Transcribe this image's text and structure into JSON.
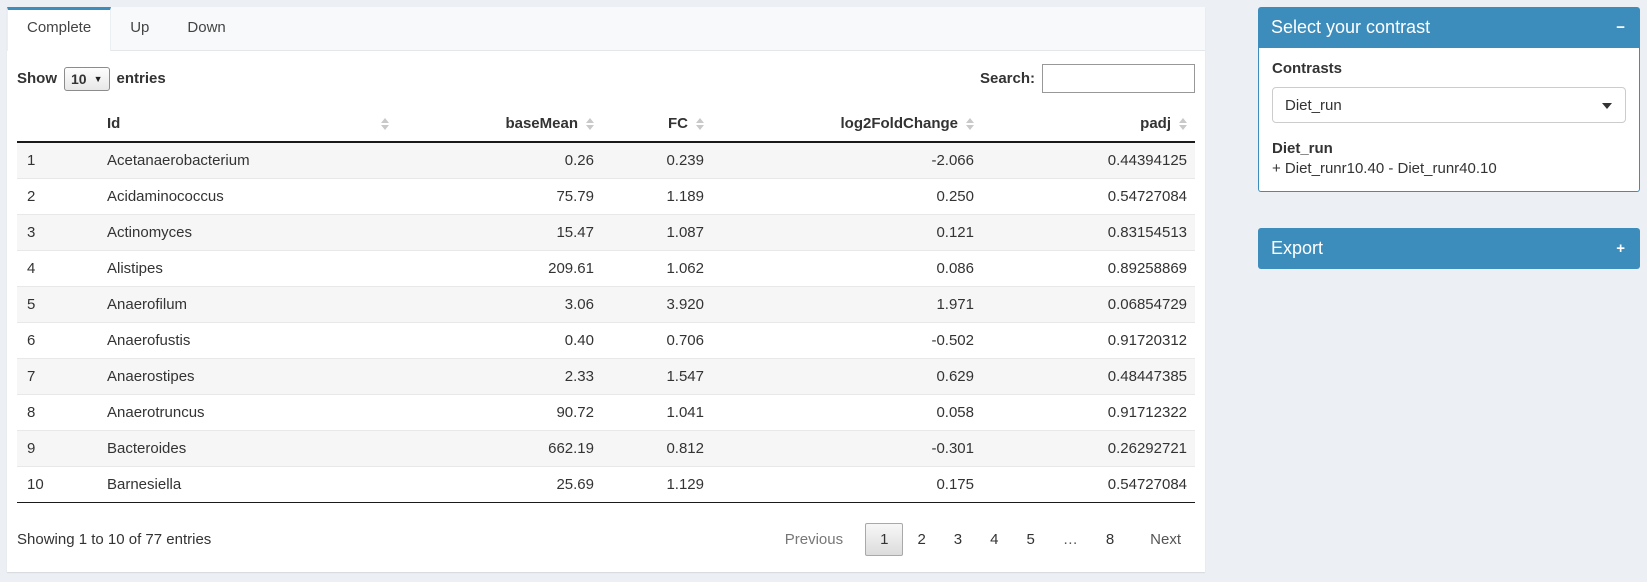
{
  "tabs": [
    {
      "label": "Complete",
      "active": true
    },
    {
      "label": "Up",
      "active": false
    },
    {
      "label": "Down",
      "active": false
    }
  ],
  "table_controls": {
    "show_label": "Show",
    "page_size": "10",
    "entries_label": "entries",
    "search_label": "Search:",
    "search_value": ""
  },
  "table": {
    "columns": [
      {
        "label": "",
        "sortable": false,
        "align": "left"
      },
      {
        "label": "Id",
        "sortable": true,
        "align": "left"
      },
      {
        "label": "baseMean",
        "sortable": true,
        "align": "right"
      },
      {
        "label": "FC",
        "sortable": true,
        "align": "right"
      },
      {
        "label": "log2FoldChange",
        "sortable": true,
        "align": "right"
      },
      {
        "label": "padj",
        "sortable": true,
        "align": "right"
      }
    ],
    "rows": [
      [
        "1",
        "Acetanaerobacterium",
        "0.26",
        "0.239",
        "-2.066",
        "0.44394125"
      ],
      [
        "2",
        "Acidaminococcus",
        "75.79",
        "1.189",
        "0.250",
        "0.54727084"
      ],
      [
        "3",
        "Actinomyces",
        "15.47",
        "1.087",
        "0.121",
        "0.83154513"
      ],
      [
        "4",
        "Alistipes",
        "209.61",
        "1.062",
        "0.086",
        "0.89258869"
      ],
      [
        "5",
        "Anaerofilum",
        "3.06",
        "3.920",
        "1.971",
        "0.06854729"
      ],
      [
        "6",
        "Anaerofustis",
        "0.40",
        "0.706",
        "-0.502",
        "0.91720312"
      ],
      [
        "7",
        "Anaerostipes",
        "2.33",
        "1.547",
        "0.629",
        "0.48447385"
      ],
      [
        "8",
        "Anaerotruncus",
        "90.72",
        "1.041",
        "0.058",
        "0.91712322"
      ],
      [
        "9",
        "Bacteroides",
        "662.19",
        "0.812",
        "-0.301",
        "0.26292721"
      ],
      [
        "10",
        "Barnesiella",
        "25.69",
        "1.129",
        "0.175",
        "0.54727084"
      ]
    ],
    "info": "Showing 1 to 10 of 77 entries",
    "pagination": {
      "previous": "Previous",
      "pages": [
        "1",
        "2",
        "3",
        "4",
        "5",
        "…",
        "8"
      ],
      "active_page": "1",
      "next": "Next"
    }
  },
  "contrast_panel": {
    "title": "Select your contrast",
    "collapse_icon": "−",
    "contrasts_label": "Contrasts",
    "selected_contrast": "Diet_run",
    "contrast_name": "Diet_run",
    "contrast_formula": "+ Diet_runr10.40 - Diet_runr40.10"
  },
  "export_panel": {
    "title": "Export",
    "expand_icon": "+"
  },
  "colors": {
    "accent": "#3c8dbc",
    "page_bg": "#ecf0f5",
    "stripe": "#f6f6f6"
  }
}
